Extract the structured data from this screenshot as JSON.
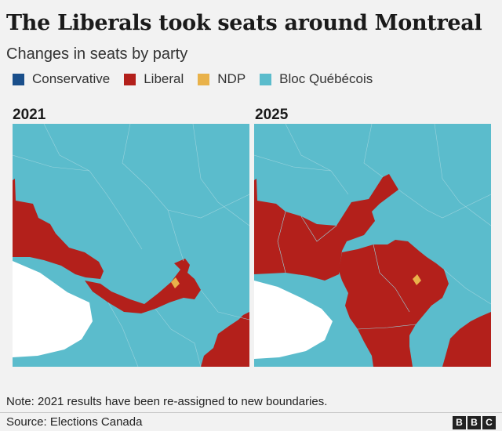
{
  "header": {
    "title": "The Liberals took seats around Montreal",
    "subtitle": "Changes in seats by party"
  },
  "legend": [
    {
      "label": "Conservative",
      "color": "#1a4f8b"
    },
    {
      "label": "Liberal",
      "color": "#b3201b"
    },
    {
      "label": "NDP",
      "color": "#e9b24a"
    },
    {
      "label": "Bloc Québécois",
      "color": "#5bbccc"
    }
  ],
  "maps": {
    "left": {
      "year": "2021"
    },
    "right": {
      "year": "2025"
    }
  },
  "colors": {
    "bloc": "#5bbccc",
    "liberal": "#b3201b",
    "ndp": "#e9b24a",
    "water": "#ffffff",
    "boundary": "#9ad3dd"
  },
  "footer": {
    "note": "Note: 2021 results have been re-assigned to new boundaries.",
    "source": "Source: Elections Canada",
    "logo": [
      "B",
      "B",
      "C"
    ]
  }
}
